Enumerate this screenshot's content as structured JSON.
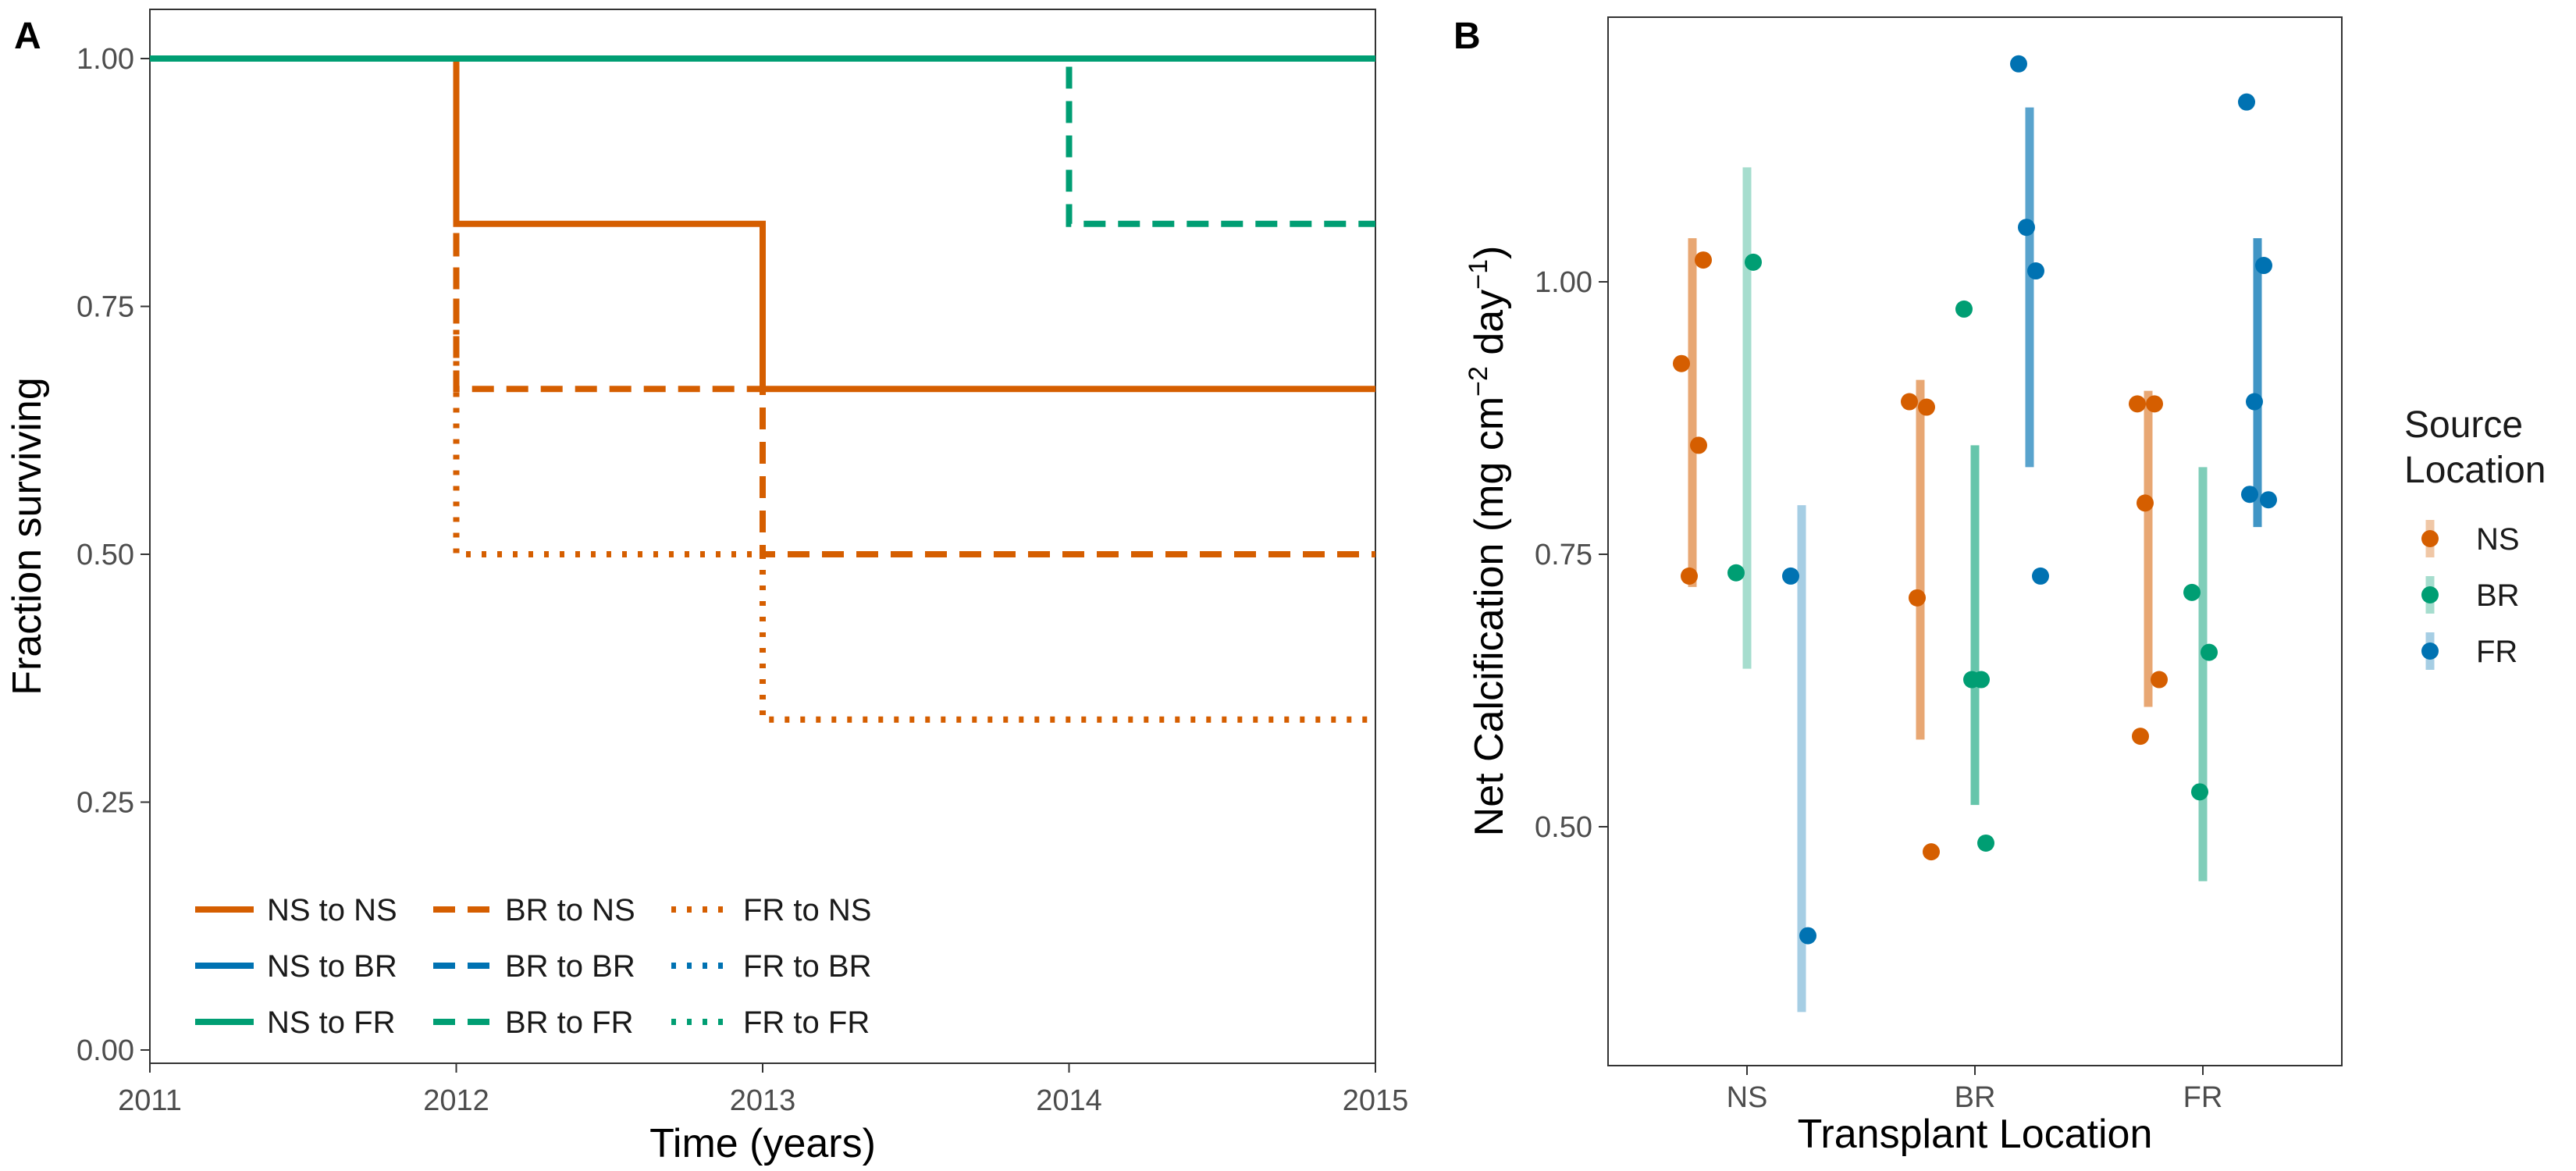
{
  "colors": {
    "NS": "#D55E00",
    "BR": "#0072B2",
    "FR": "#009E73"
  },
  "chart_data": [
    {
      "panel": "A",
      "type": "line",
      "xlabel": "Time (years)",
      "ylabel": "Fraction surviving",
      "xlim": [
        2011,
        2015
      ],
      "ylim": [
        0,
        1
      ],
      "xticks": [
        2011,
        2012,
        2013,
        2014,
        2015
      ],
      "yticks": [
        "0.00",
        "0.25",
        "0.50",
        "0.75",
        "1.00"
      ],
      "grid": false,
      "legend_position": "bottom-left",
      "series": [
        {
          "name": "NS to NS",
          "color": "#D55E00",
          "dash": "solid",
          "x": [
            2011,
            2012,
            2012,
            2013,
            2013,
            2015
          ],
          "y": [
            1,
            1,
            0.8333,
            0.8333,
            0.6667,
            0.6667
          ]
        },
        {
          "name": "NS to BR",
          "color": "#0072B2",
          "dash": "solid",
          "x": [
            2011,
            2015
          ],
          "y": [
            1,
            1
          ]
        },
        {
          "name": "NS to FR",
          "color": "#009E73",
          "dash": "solid",
          "x": [
            2011,
            2015
          ],
          "y": [
            1,
            1
          ]
        },
        {
          "name": "BR to NS",
          "color": "#D55E00",
          "dash": "dashed",
          "x": [
            2011,
            2012,
            2012,
            2013,
            2013,
            2015
          ],
          "y": [
            1,
            1,
            0.6667,
            0.6667,
            0.5,
            0.5
          ]
        },
        {
          "name": "BR to BR",
          "color": "#0072B2",
          "dash": "dashed",
          "x": [
            2011,
            2015
          ],
          "y": [
            1,
            1
          ]
        },
        {
          "name": "BR to FR",
          "color": "#009E73",
          "dash": "dashed",
          "x": [
            2011,
            2014,
            2014,
            2015
          ],
          "y": [
            1,
            1,
            0.8333,
            0.8333
          ]
        },
        {
          "name": "FR to NS",
          "color": "#D55E00",
          "dash": "dotted",
          "x": [
            2011,
            2012,
            2012,
            2013,
            2013,
            2015
          ],
          "y": [
            1,
            1,
            0.5,
            0.5,
            0.3333,
            0.3333
          ]
        },
        {
          "name": "FR to BR",
          "color": "#0072B2",
          "dash": "dotted",
          "x": [
            2011,
            2015
          ],
          "y": [
            1,
            1
          ]
        },
        {
          "name": "FR to FR",
          "color": "#009E73",
          "dash": "dotted",
          "x": [
            2011,
            2015
          ],
          "y": [
            1,
            1
          ]
        }
      ]
    },
    {
      "panel": "B",
      "type": "scatter",
      "xlabel": "Transplant Location",
      "ylabel_main": "Net Calcification (mg cm",
      "ylabel_sup1": "−2",
      "ylabel_mid": " day",
      "ylabel_sup2": "−1",
      "ylabel_end": ")",
      "categories": [
        "NS",
        "BR",
        "FR"
      ],
      "yticks": [
        "0.50",
        "0.75",
        "1.00"
      ],
      "ylim": [
        0.3,
        1.2
      ],
      "grid": false,
      "legend_title": [
        "Source",
        "Location"
      ],
      "legend_position": "right",
      "groups": [
        {
          "transplant": "NS",
          "source": "NS",
          "color": "#D55E00",
          "alpha": 0.55,
          "range": [
            0.72,
            1.04
          ],
          "points": [
            0.925,
            0.85,
            0.73,
            1.02
          ]
        },
        {
          "transplant": "NS",
          "source": "BR",
          "color": "#009E73",
          "alpha": 0.35,
          "range": [
            0.645,
            1.105
          ],
          "points": [
            0.733,
            1.018
          ]
        },
        {
          "transplant": "NS",
          "source": "FR",
          "color": "#0072B2",
          "alpha": 0.35,
          "range": [
            0.33,
            0.795
          ],
          "points": [
            0.73,
            0.4
          ]
        },
        {
          "transplant": "BR",
          "source": "NS",
          "color": "#D55E00",
          "alpha": 0.55,
          "range": [
            0.58,
            0.91
          ],
          "points": [
            0.89,
            0.885,
            0.71,
            0.477
          ]
        },
        {
          "transplant": "BR",
          "source": "BR",
          "color": "#009E73",
          "alpha": 0.6,
          "range": [
            0.52,
            0.85
          ],
          "points": [
            0.975,
            0.635,
            0.635,
            0.485
          ]
        },
        {
          "transplant": "BR",
          "source": "FR",
          "color": "#0072B2",
          "alpha": 0.65,
          "range": [
            0.83,
            1.16
          ],
          "points": [
            1.2,
            1.01,
            1.05,
            0.73
          ]
        },
        {
          "transplant": "FR",
          "source": "NS",
          "color": "#D55E00",
          "alpha": 0.55,
          "range": [
            0.61,
            0.9
          ],
          "points": [
            0.888,
            0.888,
            0.797,
            0.635,
            0.583
          ]
        },
        {
          "transplant": "FR",
          "source": "BR",
          "color": "#009E73",
          "alpha": 0.5,
          "range": [
            0.45,
            0.83
          ],
          "points": [
            0.715,
            0.66,
            0.532
          ]
        },
        {
          "transplant": "FR",
          "source": "FR",
          "color": "#0072B2",
          "alpha": 0.75,
          "range": [
            0.775,
            1.04
          ],
          "points": [
            1.165,
            1.015,
            0.89,
            0.8,
            0.805
          ]
        }
      ],
      "legend": [
        {
          "label": "NS",
          "color": "#D55E00"
        },
        {
          "label": "BR",
          "color": "#009E73"
        },
        {
          "label": "FR",
          "color": "#0072B2"
        }
      ]
    }
  ]
}
